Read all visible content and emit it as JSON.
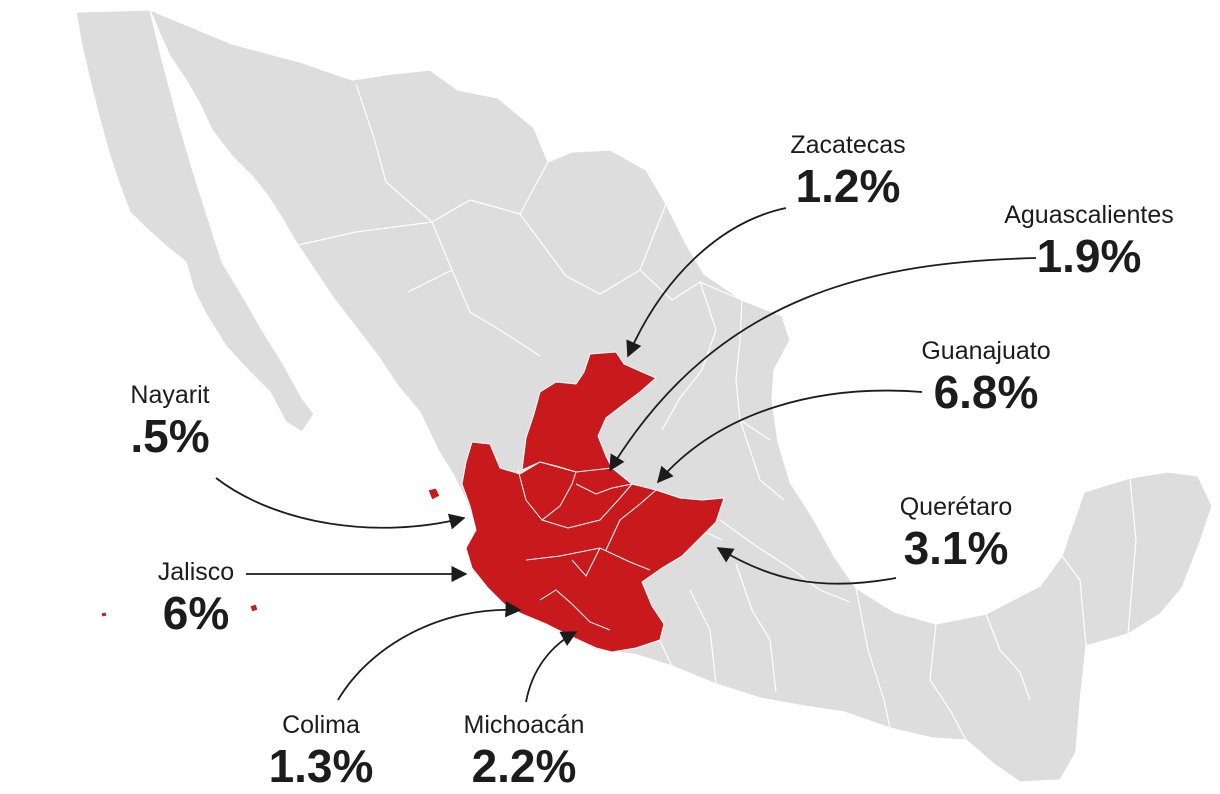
{
  "colors": {
    "land": "#dddddd",
    "border": "#ffffff",
    "highlight": "#c8191c",
    "text": "#1c1c1c",
    "arrow": "#1c1c1c"
  },
  "callouts": [
    {
      "name": "Zacatecas",
      "value": "1.2%"
    },
    {
      "name": "Aguascalientes",
      "value": "1.9%"
    },
    {
      "name": "Guanajuato",
      "value": "6.8%"
    },
    {
      "name": "Nayarit",
      "value": ".5%"
    },
    {
      "name": "Querétaro",
      "value": "3.1%"
    },
    {
      "name": "Jalisco",
      "value": "6%"
    },
    {
      "name": "Colima",
      "value": "1.3%"
    },
    {
      "name": "Michoacán",
      "value": "2.2%"
    }
  ]
}
